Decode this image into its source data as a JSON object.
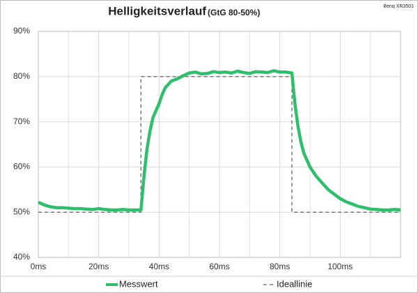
{
  "chart_data": {
    "type": "line",
    "title": "Helligkeitsverlauf",
    "subtitle": "(GtG 80-50%)",
    "corner_note": "Benq XR3501",
    "xlim": [
      0,
      120
    ],
    "xticks": [
      {
        "value": 0,
        "label": "0ms"
      },
      {
        "value": 20,
        "label": "20ms"
      },
      {
        "value": 40,
        "label": "40ms"
      },
      {
        "value": 60,
        "label": "60ms"
      },
      {
        "value": 80,
        "label": "80ms"
      },
      {
        "value": 100,
        "label": "100ms"
      }
    ],
    "xminor": [
      10,
      30,
      50,
      70,
      90,
      110
    ],
    "ylim": [
      40,
      90
    ],
    "yticks": [
      {
        "value": 40,
        "label": "40%"
      },
      {
        "value": 50,
        "label": "50%"
      },
      {
        "value": 60,
        "label": "60%"
      },
      {
        "value": 70,
        "label": "70%"
      },
      {
        "value": 80,
        "label": "80%"
      },
      {
        "value": 90,
        "label": "90%"
      }
    ],
    "grid": true,
    "legend": "bottom",
    "series": [
      {
        "name": "Messwert",
        "color": "#2fbf6c",
        "dashed": false,
        "x": [
          0,
          2,
          4,
          6,
          8,
          10,
          12,
          14,
          16,
          18,
          20,
          22,
          24,
          26,
          28,
          30,
          32,
          34,
          35,
          36,
          37,
          38,
          39,
          40,
          41,
          42,
          44,
          46,
          48,
          50,
          52,
          54,
          56,
          58,
          60,
          62,
          64,
          66,
          68,
          70,
          72,
          74,
          76,
          78,
          80,
          82,
          84,
          85,
          86,
          87,
          88,
          90,
          92,
          94,
          96,
          98,
          100,
          102,
          104,
          106,
          108,
          110,
          112,
          114,
          116,
          118,
          120
        ],
        "values": [
          52.2,
          51.6,
          51.2,
          51.0,
          51.0,
          50.9,
          50.8,
          50.8,
          50.7,
          50.6,
          50.8,
          50.6,
          50.5,
          50.5,
          50.6,
          50.5,
          50.5,
          50.5,
          58,
          64,
          68,
          71,
          72.5,
          74,
          76,
          77.5,
          79,
          79.5,
          80.2,
          80.8,
          81,
          80.6,
          80.7,
          81.1,
          80.9,
          81,
          80.8,
          81.2,
          80.9,
          80.7,
          81.1,
          81,
          80.9,
          81.3,
          81,
          81,
          80.8,
          74,
          69,
          65.5,
          63,
          60,
          58,
          56.5,
          55,
          54,
          53,
          52.3,
          51.8,
          51.3,
          51,
          50.7,
          50.6,
          50.5,
          50.5,
          50.6,
          50.5
        ]
      },
      {
        "name": "Ideallinie",
        "color": "#777777",
        "dashed": true,
        "x": [
          0,
          34,
          34,
          84,
          84,
          120
        ],
        "values": [
          50,
          50,
          80,
          80,
          50,
          50
        ]
      }
    ]
  }
}
